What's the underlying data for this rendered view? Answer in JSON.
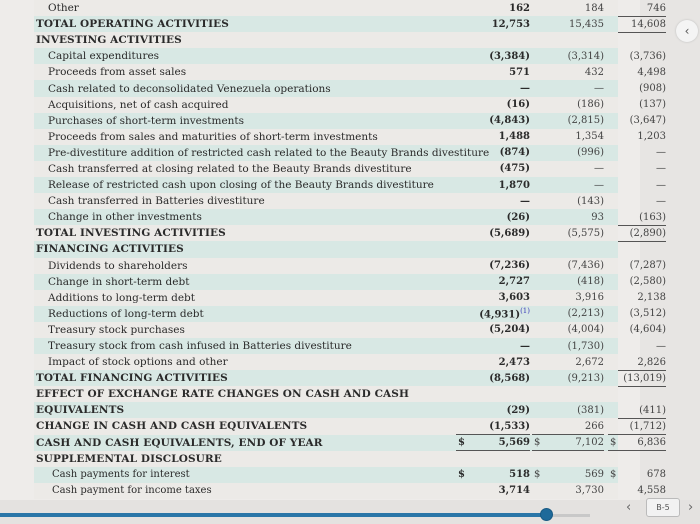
{
  "rows": [
    {
      "label": "Other",
      "style": "ind",
      "c1": "162",
      "c2": "184",
      "c3": "746",
      "ul": true
    },
    {
      "label": "TOTAL OPERATING ACTIVITIES",
      "style": "hdr",
      "c1": "12,753",
      "c2": "15,435",
      "c3": "14,608",
      "ul": true
    },
    {
      "label": "INVESTING ACTIVITIES",
      "style": "hdr",
      "c1": "",
      "c2": "",
      "c3": ""
    },
    {
      "label": "Capital expenditures",
      "style": "ind",
      "c1": "(3,384)",
      "c2": "(3,314)",
      "c3": "(3,736)"
    },
    {
      "label": "Proceeds from asset sales",
      "style": "ind",
      "c1": "571",
      "c2": "432",
      "c3": "4,498"
    },
    {
      "label": "Cash related to deconsolidated Venezuela operations",
      "style": "ind",
      "c1": "—",
      "c2": "—",
      "c3": "(908)"
    },
    {
      "label": "Acquisitions, net of cash acquired",
      "style": "ind",
      "c1": "(16)",
      "c2": "(186)",
      "c3": "(137)"
    },
    {
      "label": "Purchases of short-term investments",
      "style": "ind",
      "c1": "(4,843)",
      "c2": "(2,815)",
      "c3": "(3,647)"
    },
    {
      "label": "Proceeds from sales and maturities of short-term investments",
      "style": "ind",
      "c1": "1,488",
      "c2": "1,354",
      "c3": "1,203"
    },
    {
      "label": "Pre-divestiture addition of restricted cash related to the Beauty Brands divestiture",
      "style": "ind",
      "c1": "(874)",
      "c2": "(996)",
      "c3": "—"
    },
    {
      "label": "Cash transferred at closing related to the Beauty Brands divestiture",
      "style": "ind",
      "c1": "(475)",
      "c2": "—",
      "c3": "—"
    },
    {
      "label": "Release of restricted cash upon closing of the Beauty Brands divestiture",
      "style": "ind",
      "c1": "1,870",
      "c2": "—",
      "c3": "—"
    },
    {
      "label": "Cash transferred in Batteries divestiture",
      "style": "ind",
      "c1": "—",
      "c2": "(143)",
      "c3": "—"
    },
    {
      "label": "Change in other investments",
      "style": "ind",
      "c1": "(26)",
      "c2": "93",
      "c3": "(163)",
      "ul": true
    },
    {
      "label": "TOTAL INVESTING ACTIVITIES",
      "style": "hdr",
      "c1": "(5,689)",
      "c2": "(5,575)",
      "c3": "(2,890)",
      "ul": true
    },
    {
      "label": "FINANCING ACTIVITIES",
      "style": "hdr",
      "c1": "",
      "c2": "",
      "c3": ""
    },
    {
      "label": "Dividends to shareholders",
      "style": "ind",
      "c1": "(7,236)",
      "c2": "(7,436)",
      "c3": "(7,287)"
    },
    {
      "label": "Change in short-term debt",
      "style": "ind",
      "c1": "2,727",
      "c2": "(418)",
      "c3": "(2,580)"
    },
    {
      "label": "Additions to long-term debt",
      "style": "ind",
      "c1": "3,603",
      "c2": "3,916",
      "c3": "2,138"
    },
    {
      "label": "Reductions of long-term debt",
      "style": "ind",
      "c1": "(4,931)",
      "c1_footnote": "(1)",
      "c2": "(2,213)",
      "c3": "(3,512)"
    },
    {
      "label": "Treasury stock purchases",
      "style": "ind",
      "c1": "(5,204)",
      "c2": "(4,004)",
      "c3": "(4,604)"
    },
    {
      "label": "Treasury stock from cash infused in Batteries divestiture",
      "style": "ind",
      "c1": "—",
      "c2": "(1,730)",
      "c3": "—"
    },
    {
      "label": "Impact of stock options and other",
      "style": "ind",
      "c1": "2,473",
      "c2": "2,672",
      "c3": "2,826",
      "ul": true
    },
    {
      "label": "TOTAL FINANCING ACTIVITIES",
      "style": "hdr",
      "c1": "(8,568)",
      "c2": "(9,213)",
      "c3": "(13,019)",
      "ul": true
    },
    {
      "label": "EFFECT OF EXCHANGE RATE CHANGES ON CASH AND CASH",
      "style": "hdr",
      "c1": "",
      "c2": "",
      "c3": ""
    },
    {
      "label": "EQUIVALENTS",
      "style": "hdr",
      "c1": "(29)",
      "c2": "(381)",
      "c3": "(411)",
      "ul": true
    },
    {
      "label": "CHANGE IN CASH AND CASH EQUIVALENTS",
      "style": "hdr",
      "c1": "(1,533)",
      "c2": "266",
      "c3": "(1,712)",
      "ul": true
    },
    {
      "label": "CASH AND CASH EQUIVALENTS, END OF YEAR",
      "style": "hdr",
      "c1": "5,569",
      "c2": "7,102",
      "c3": "6,836",
      "dollar": "$",
      "ul": true
    },
    {
      "label": "SUPPLEMENTAL DISCLOSURE",
      "style": "hdr",
      "c1": "",
      "c2": "",
      "c3": ""
    },
    {
      "label": "Cash payments for interest",
      "style": "sub",
      "c1": "518",
      "c2": "569",
      "c3": "678",
      "dollar": "$"
    },
    {
      "label": "Cash payment for income taxes",
      "style": "sub",
      "c1": "3,714",
      "c2": "3,730",
      "c3": "4,558"
    }
  ],
  "nav": {
    "page_label": "B-5",
    "prev": "‹",
    "next": "›",
    "side_arrow": "‹"
  },
  "colors": {
    "stripe": "#d8e8e4",
    "slider": "#2a76a8",
    "footnote": "#3a3ab8"
  }
}
